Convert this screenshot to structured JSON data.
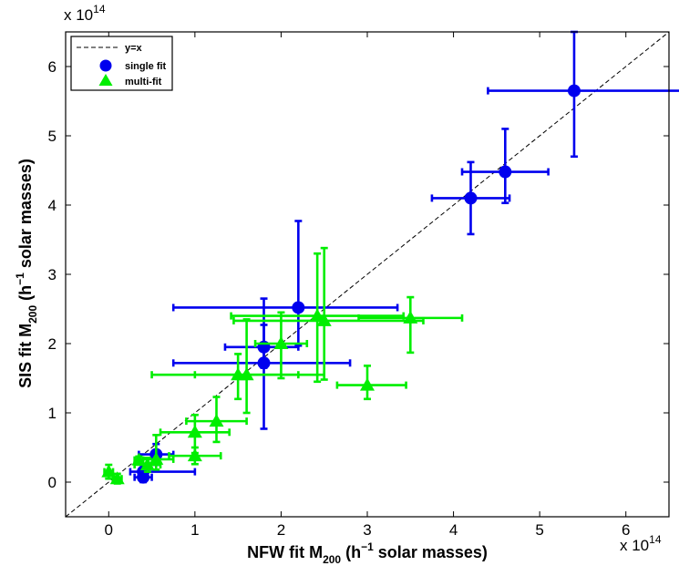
{
  "chart_data": {
    "type": "scatter",
    "xlabel": {
      "pre": "NFW fit M",
      "sub": "200",
      "mid": " (h",
      "sup": "−1",
      "post": " solar masses)"
    },
    "ylabel": {
      "pre": "SIS fit M",
      "sub": "200",
      "mid": " (h",
      "sup": "−1",
      "post": " solar masses)"
    },
    "x_exponent": {
      "base": "x 10",
      "power": "14"
    },
    "y_exponent": {
      "base": "x 10",
      "power": "14"
    },
    "xlim": [
      -0.5,
      6.5
    ],
    "ylim": [
      -0.5,
      6.5
    ],
    "xticks": [
      "0",
      "1",
      "2",
      "3",
      "4",
      "5",
      "6"
    ],
    "yticks": [
      "0",
      "1",
      "2",
      "3",
      "4",
      "5",
      "6"
    ],
    "grid": false,
    "legend_position": "top-left",
    "reference_line": {
      "name": "y=x",
      "color": "#000000",
      "style": "dashed"
    },
    "series": [
      {
        "name": "single fit",
        "marker": "circle",
        "color": "#0000ee",
        "points": [
          {
            "x": 5.4,
            "y": 5.65,
            "xerr": [
              1.0,
              1.3
            ],
            "yerr": [
              0.95,
              0.85
            ]
          },
          {
            "x": 4.6,
            "y": 4.48,
            "xerr": [
              0.5,
              0.5
            ],
            "yerr": [
              0.45,
              0.62
            ]
          },
          {
            "x": 4.2,
            "y": 4.1,
            "xerr": [
              0.45,
              0.45
            ],
            "yerr": [
              0.52,
              0.52
            ]
          },
          {
            "x": 2.2,
            "y": 2.52,
            "xerr": [
              1.45,
              1.15
            ],
            "yerr": [
              0.55,
              1.25
            ]
          },
          {
            "x": 1.8,
            "y": 1.95,
            "xerr": [
              0.45,
              0.4
            ],
            "yerr": [
              0.3,
              0.7
            ]
          },
          {
            "x": 1.8,
            "y": 1.72,
            "xerr": [
              1.05,
              1.0
            ],
            "yerr": [
              0.95,
              0.55
            ]
          },
          {
            "x": 0.55,
            "y": 0.4,
            "xerr": [
              0.2,
              0.2
            ],
            "yerr": [
              0.15,
              0.15
            ]
          },
          {
            "x": 0.4,
            "y": 0.15,
            "xerr": [
              0.15,
              0.6
            ],
            "yerr": [
              0.1,
              0.1
            ]
          },
          {
            "x": 0.4,
            "y": 0.07,
            "xerr": [
              0.1,
              0.1
            ],
            "yerr": [
              0.07,
              0.07
            ]
          }
        ]
      },
      {
        "name": "multi-fit",
        "marker": "triangle",
        "color": "#00ee00",
        "points": [
          {
            "x": 2.42,
            "y": 2.4,
            "xerr": [
              1.0,
              1.0
            ],
            "yerr": [
              0.95,
              0.9
            ]
          },
          {
            "x": 2.5,
            "y": 2.33,
            "xerr": [
              1.05,
              1.15
            ],
            "yerr": [
              0.85,
              1.05
            ]
          },
          {
            "x": 3.5,
            "y": 2.37,
            "xerr": [
              0.6,
              0.6
            ],
            "yerr": [
              0.5,
              0.3
            ]
          },
          {
            "x": 2.0,
            "y": 2.0,
            "xerr": [
              0.3,
              0.3
            ],
            "yerr": [
              0.5,
              0.45
            ]
          },
          {
            "x": 1.6,
            "y": 1.55,
            "xerr": [
              0.6,
              0.6
            ],
            "yerr": [
              0.55,
              0.8
            ]
          },
          {
            "x": 1.5,
            "y": 1.55,
            "xerr": [
              1.0,
              1.0
            ],
            "yerr": [
              0.35,
              0.3
            ]
          },
          {
            "x": 3.0,
            "y": 1.4,
            "xerr": [
              0.35,
              0.45
            ],
            "yerr": [
              0.2,
              0.28
            ]
          },
          {
            "x": 1.25,
            "y": 0.88,
            "xerr": [
              0.35,
              0.35
            ],
            "yerr": [
              0.3,
              0.35
            ]
          },
          {
            "x": 1.0,
            "y": 0.72,
            "xerr": [
              0.4,
              0.4
            ],
            "yerr": [
              0.3,
              0.25
            ]
          },
          {
            "x": 1.0,
            "y": 0.38,
            "xerr": [
              0.3,
              0.3
            ],
            "yerr": [
              0.12,
              0.12
            ]
          },
          {
            "x": 0.55,
            "y": 0.33,
            "xerr": [
              0.2,
              0.2
            ],
            "yerr": [
              0.15,
              0.35
            ]
          },
          {
            "x": 0.35,
            "y": 0.32,
            "xerr": [
              0.05,
              0.05
            ],
            "yerr": [
              0.05,
              0.05
            ]
          },
          {
            "x": 0.45,
            "y": 0.25,
            "xerr": [
              0.15,
              0.15
            ],
            "yerr": [
              0.1,
              0.1
            ]
          },
          {
            "x": 0.0,
            "y": 0.15,
            "xerr": [
              0.05,
              0.05
            ],
            "yerr": [
              0.1,
              0.1
            ]
          },
          {
            "x": 0.1,
            "y": 0.05,
            "xerr": [
              0.05,
              0.05
            ],
            "yerr": [
              0.07,
              0.07
            ]
          }
        ]
      }
    ]
  }
}
